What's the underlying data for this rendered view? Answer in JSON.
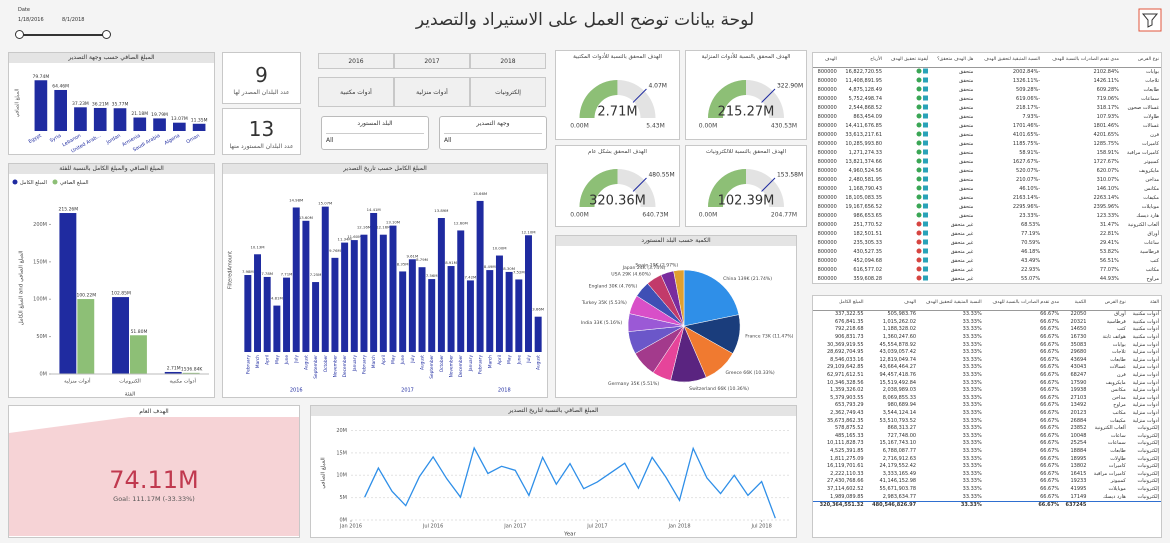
{
  "header": {
    "title": "لوحة بيانات توضح العمل على الاستيراد والتصدير",
    "date_slicer": {
      "label": "Date",
      "start": "1/18/2016",
      "end": "8/1/2018"
    }
  },
  "cards": [
    {
      "value": 9,
      "label": "عدد البلدان المصدر لها"
    },
    {
      "value": 13,
      "label": "عدد البلدان المستورد منها"
    }
  ],
  "slicers": {
    "years": [
      "2016",
      "2017",
      "2018"
    ],
    "categories": [
      "أدوات مكتبية",
      "أدوات منزلية",
      "إلكترونيات"
    ],
    "dropdowns": [
      {
        "label": "البلد المستورد",
        "value": "All"
      },
      {
        "label": "وجهة التصدير",
        "value": "All"
      }
    ]
  },
  "chart_data": [
    {
      "type": "bar",
      "title": "المبلغ الصافي حسب وجهة التصدير",
      "y_label": "المبلغ الصافي",
      "color": "#1f2ba0",
      "categories": [
        "Egypt",
        "Syria",
        "Lebanon",
        "United Arab...",
        "Jordan",
        "Armenia",
        "Saudi Arabia",
        "Algeria",
        "Oman"
      ],
      "values": [
        79.74,
        64.46,
        37.23,
        36.21,
        35.77,
        21.18,
        19.79,
        13.07,
        11.35
      ],
      "value_labels": [
        "79.74M",
        "64.46M",
        "37.23M",
        "36.21M",
        "35.77M",
        "21.18M",
        "19.79M",
        "13.07M",
        "11.35M"
      ],
      "ylim": [
        0,
        88
      ]
    },
    {
      "type": "grouped_bar",
      "title": "المبلغ الصافي والمبلغ الكامل بالنسبة للفئة",
      "x_label": "الفئة",
      "y_label": "المبلغ الكامل and المبلغ الصافي",
      "legend": "top-left",
      "categories": [
        "أدوات منزلية",
        "الكترونيات",
        "أدوات مكتبية"
      ],
      "series": [
        {
          "name": "المبلغ الكامل",
          "color": "#1f2ba0",
          "values": [
            215.26,
            102.85,
            2.71
          ],
          "value_labels": [
            "215.26M",
            "102.85M",
            "2.71M"
          ]
        },
        {
          "name": "المبلغ الصافي",
          "color": "#8dbf76",
          "values": [
            100.22,
            51.8,
            1.53684
          ],
          "value_labels": [
            "100.22M",
            "51.80M",
            "1536.84K"
          ]
        }
      ],
      "ylim": [
        0,
        230
      ],
      "yticks": [
        {
          "value": 0,
          "label": "0M"
        },
        {
          "value": 50,
          "label": "50M"
        },
        {
          "value": 100,
          "label": "100M"
        },
        {
          "value": 150,
          "label": "150M"
        },
        {
          "value": 200,
          "label": "200M"
        }
      ]
    },
    {
      "type": "grouped_column",
      "title": "المبلغ الكامل حسب تاريخ التصدير",
      "y_label": "FilteredAmount",
      "color": "#1f2ba0",
      "ylim": [
        0,
        17
      ],
      "groups": [
        {
          "label": "2016",
          "categories": [
            "February",
            "March",
            "April",
            "May",
            "June",
            "July",
            "August",
            "September",
            "October",
            "November",
            "December"
          ],
          "values": [
            7.98,
            10.13,
            7.78,
            4.81,
            7.71,
            14.98,
            13.6,
            7.25,
            15.07,
            9.76,
            11.34
          ],
          "value_labels": [
            "7.98M",
            "10.13M",
            "7.78M",
            "4.81M",
            "7.71M",
            "14.98M",
            "13.60M",
            "7.25M",
            "15.07M",
            "9.76M",
            "11.34M"
          ]
        },
        {
          "label": "2017",
          "categories": [
            "January",
            "February",
            "March",
            "April",
            "May",
            "June",
            "July",
            "August",
            "September",
            "October",
            "November",
            "December"
          ],
          "values": [
            11.6,
            12.16,
            14.41,
            12.16,
            13.1,
            8.35,
            9.61,
            8.79,
            7.56,
            13.89,
            8.91,
            12.6
          ],
          "value_labels": [
            "11.60M",
            "12.16M",
            "14.41M",
            "12.16M",
            "13.10M",
            "8.35M",
            "9.61M",
            "8.79M",
            "7.56M",
            "13.89M",
            "8.91M",
            "12.60M"
          ]
        },
        {
          "label": "2018",
          "categories": [
            "January",
            "February",
            "March",
            "April",
            "May",
            "June",
            "July",
            "August"
          ],
          "values": [
            7.42,
            15.66,
            8.49,
            10,
            8.3,
            7.52,
            12.1,
            3.66
          ],
          "value_labels": [
            "7.42M",
            "15.66M",
            "8.49M",
            "10.00M",
            "8.30M",
            "7.52M",
            "12.10M",
            "3.66M"
          ]
        }
      ]
    },
    {
      "type": "pie",
      "title": "الكمية حسب البلد المستورد",
      "categories": [
        "China",
        "France",
        "Greece",
        "Switzerland",
        "Germany",
        null,
        null,
        "India",
        "Turkey",
        "England",
        "USA",
        "Japan",
        "Spain"
      ],
      "values": [
        139,
        73,
        66,
        66,
        35,
        48,
        42,
        33,
        35,
        30,
        29,
        24,
        19
      ],
      "value_labels": [
        "139K (21.74%)",
        "73K (11.47%)",
        "66K (10.33%)",
        "66K (10.36%)",
        "35K (5.51%)",
        null,
        null,
        "33K (5.16%)",
        "35K (5.53%)",
        "30K (4.76%)",
        "29K (4.60%)",
        "24K (3.74%)",
        "19K (2.97%)"
      ],
      "colors": [
        "#2f8fe8",
        "#1a3d7c",
        "#f07a30",
        "#5a2480",
        "#e6449a",
        "#a33a8c",
        "#6b57c9",
        "#9b59d6",
        "#d84fc8",
        "#3f4fb5",
        "#c23a6a",
        "#7a2c9e",
        "#e0a030"
      ]
    },
    {
      "type": "line",
      "title": "المبلغ الصافي بالنسبة لتاريخ التصدير",
      "x_label": "Year",
      "y_label": "المبلغ الصافي",
      "color": "#2f8fe8",
      "x": [
        "2016-02",
        "2016-03",
        "2016-04",
        "2016-05",
        "2016-06",
        "2016-07",
        "2016-08",
        "2016-09",
        "2016-10",
        "2016-11",
        "2016-12",
        "2017-01",
        "2017-02",
        "2017-03",
        "2017-04",
        "2017-05",
        "2017-06",
        "2017-07",
        "2017-08",
        "2017-09",
        "2017-10",
        "2017-11",
        "2017-12",
        "2018-01",
        "2018-02",
        "2018-03",
        "2018-04",
        "2018-05",
        "2018-06",
        "2018-07",
        "2018-08"
      ],
      "values": [
        5.1,
        11.6,
        6.4,
        3.2,
        9.7,
        14.1,
        9.2,
        5.1,
        16.1,
        10.4,
        12.0,
        11.1,
        5.5,
        14.0,
        8.0,
        12.6,
        7.0,
        8.5,
        10.6,
        12.7,
        7.1,
        14.0,
        9.6,
        4.4,
        16.0,
        9.4,
        5.9,
        10.0,
        5.5,
        8.6,
        0.4
      ],
      "xlim": [
        "2016-01",
        "2018-09"
      ],
      "xticks": [
        {
          "value": "2016-01",
          "label": "Jan 2016"
        },
        {
          "value": "2016-07",
          "label": "Jul 2016"
        },
        {
          "value": "2017-01",
          "label": "Jan 2017"
        },
        {
          "value": "2017-07",
          "label": "Jul 2017"
        },
        {
          "value": "2018-01",
          "label": "Jan 2018"
        },
        {
          "value": "2018-07",
          "label": "Jul 2018"
        }
      ],
      "ylim": [
        0,
        21
      ],
      "yticks": [
        {
          "value": 0,
          "label": "0M"
        },
        {
          "value": 5,
          "label": "5M"
        },
        {
          "value": 10,
          "label": "10M"
        },
        {
          "value": 15,
          "label": "15M"
        },
        {
          "value": 20,
          "label": "20M"
        }
      ],
      "grid": true
    }
  ],
  "gauges": [
    {
      "title": "الهدف المحقق بالنسبة للأدوات المكتبية",
      "value": {
        "value": 2.71,
        "label": "2.71M"
      },
      "min": {
        "value": 0,
        "label": "0.00M"
      },
      "max": {
        "value": 5.43,
        "label": "5.43M"
      },
      "target": {
        "value": 4.07,
        "label": "4.07M"
      }
    },
    {
      "title": "الهدف المحقق بالنسبة للأدوات المنزلية",
      "value": {
        "value": 215.27,
        "label": "215.27M"
      },
      "min": {
        "value": 0,
        "label": "0.00M"
      },
      "max": {
        "value": 430.53,
        "label": "430.53M"
      },
      "target": {
        "value": 322.9,
        "label": "322.90M"
      }
    },
    {
      "title": "الهدف المحقق بشكل عام",
      "value": {
        "value": 320.36,
        "label": "320.36M"
      },
      "min": {
        "value": 0,
        "label": "0.00M"
      },
      "max": {
        "value": 640.73,
        "label": "640.73M"
      },
      "target": {
        "value": 480.55,
        "label": "480.55M"
      }
    },
    {
      "title": "الهدف المحقق بالنسبة للالكترونيات",
      "value": {
        "value": 102.39,
        "label": "102.39M"
      },
      "min": {
        "value": 0,
        "label": "0.00M"
      },
      "max": {
        "value": 204.77,
        "label": "204.77M"
      },
      "target": {
        "value": 153.58,
        "label": "153.58M"
      }
    }
  ],
  "gauge_colors": {
    "fill": "#8dbf76",
    "track": "#e3e3e3",
    "target": "#1f2ba0"
  },
  "kpi": {
    "title": "الهدف العام",
    "value": "74.11M",
    "goal": "Goal: 111.17M (-33.33%)"
  },
  "tables": [
    {
      "columns": [
        "نوع الفرض",
        "مدى تقدم الصادرات بالنسبة للهدف",
        "النسبة المتبقية لتحقيق الهدف",
        "هل الهدف متحقق؟",
        "أيقونة تحقيق الهدف",
        "الأرباح",
        "الهدف"
      ],
      "rows": [
        [
          "بوابات",
          "2102.84%",
          "-2002.84%",
          "متحقق",
          "16,822,720.55",
          "800000"
        ],
        [
          "ثلاجات",
          "1426.11%",
          "-1326.11%",
          "متحقق",
          "11,408,891.95",
          "800000"
        ],
        [
          "طابعات",
          "609.28%",
          "-509.28%",
          "متحقق",
          "4,875,128.49",
          "800000"
        ],
        [
          "سماعات",
          "719.06%",
          "-619.06%",
          "متحقق",
          "5,752,498.74",
          "800000"
        ],
        [
          "غسالات صحون",
          "318.17%",
          "-218.17%",
          "متحقق",
          "2,544,868.52",
          "800000"
        ],
        [
          "طاولات",
          "107.93%",
          "-7.93%",
          "متحقق",
          "863,454.09",
          "800000"
        ],
        [
          "غسالات",
          "1801.46%",
          "-1701.46%",
          "متحقق",
          "14,411,676.85",
          "800000"
        ],
        [
          "فرن",
          "4201.65%",
          "-4101.65%",
          "متحقق",
          "33,613,217.61",
          "800000"
        ],
        [
          "كاميرات",
          "1285.75%",
          "-1185.75%",
          "متحقق",
          "10,285,993.80",
          "800000"
        ],
        [
          "كاميرات مراقبة",
          "158.91%",
          "-58.91%",
          "متحقق",
          "1,271,274.33",
          "800000"
        ],
        [
          "كمبيوتر",
          "1727.67%",
          "-1627.67%",
          "متحقق",
          "13,821,374.66",
          "800000"
        ],
        [
          "مايكرويف",
          "620.07%",
          "-520.07%",
          "متحقق",
          "4,960,524.56",
          "800000"
        ],
        [
          "مداخن",
          "310.07%",
          "-210.07%",
          "متحقق",
          "2,480,581.95",
          "800000"
        ],
        [
          "مكانس",
          "146.10%",
          "-46.10%",
          "متحقق",
          "1,168,790.43",
          "800000"
        ],
        [
          "مكيفات",
          "2263.14%",
          "-2163.14%",
          "متحقق",
          "18,105,083.35",
          "800000"
        ],
        [
          "موبايلات",
          "2395.96%",
          "-2295.96%",
          "متحقق",
          "19,167,656.52",
          "800000"
        ],
        [
          "هارد ديسك",
          "123.33%",
          "-23.33%",
          "متحقق",
          "986,653.65",
          "800000"
        ],
        [
          "ألعاب الكترونية",
          "31.47%",
          "68.53%",
          "غير متحقق",
          "251,770.52",
          "800000"
        ],
        [
          "أوراق",
          "22.81%",
          "77.19%",
          "غير متحقق",
          "182,501.51",
          "800000"
        ],
        [
          "ساعات",
          "29.41%",
          "70.59%",
          "غير متحقق",
          "235,305.33",
          "800000"
        ],
        [
          "قرطاسية",
          "53.82%",
          "46.18%",
          "غير متحقق",
          "430,527.35",
          "800000"
        ],
        [
          "كتب",
          "56.51%",
          "43.49%",
          "غير متحقق",
          "452,094.68",
          "800000"
        ],
        [
          "مكاتب",
          "77.07%",
          "22.93%",
          "غير متحقق",
          "616,577.02",
          "800000"
        ],
        [
          "مراوح",
          "44.93%",
          "55.07%",
          "غير متحقق",
          "359,608.28",
          "800000"
        ],
        [
          "هواتف ثابتة",
          "58.96%",
          "41.04%",
          "غير متحقق",
          "471,712.73",
          "800000"
        ]
      ],
      "icon_colors": [
        "#3aa655",
        "#3aa655",
        "#3aa655",
        "#3aa655",
        "#3aa655",
        "#3aa655",
        "#3aa655",
        "#3aa655",
        "#3aa655",
        "#3aa655",
        "#3aa655",
        "#3aa655",
        "#3aa655",
        "#3aa655",
        "#3aa655",
        "#3aa655",
        "#3aa655",
        "#d64541",
        "#d64541",
        "#d64541",
        "#d64541",
        "#d64541",
        "#d64541",
        "#d64541",
        "#d64541"
      ]
    },
    {
      "columns": [
        "الفئة",
        "نوع الفرض",
        "الكمية",
        "مدى تقدم الصادرات بالنسبة للهدف",
        "النسبة المتبقية لتحقيق الهدف",
        "الهدف",
        "المبلغ الكامل"
      ],
      "rows": [
        [
          "أدوات مكتبية",
          "أوراق",
          "22050",
          "66.67%",
          "33.33%",
          "505,983.76",
          "337,322.55"
        ],
        [
          "أدوات مكتبية",
          "قرطاسية",
          "20321",
          "66.67%",
          "33.33%",
          "1,015,262.02",
          "676,841.35"
        ],
        [
          "أدوات مكتبية",
          "كتب",
          "14650",
          "66.67%",
          "33.33%",
          "1,188,328.02",
          "792,218.68"
        ],
        [
          "أدوات مكتبية",
          "هواتف ثابتة",
          "16730",
          "66.67%",
          "33.33%",
          "1,360,247.60",
          "906,831.73"
        ],
        [
          "أدوات منزلية",
          "بوابات",
          "35083",
          "66.67%",
          "33.33%",
          "45,554,878.92",
          "30,369,919.55"
        ],
        [
          "أدوات منزلية",
          "ثلاجات",
          "29680",
          "66.67%",
          "33.33%",
          "43,039,057.42",
          "28,692,704.95"
        ],
        [
          "أدوات منزلية",
          "طابعات",
          "43694",
          "66.67%",
          "33.33%",
          "12,819,049.74",
          "8,546,033.16"
        ],
        [
          "أدوات منزلية",
          "غسالات",
          "43043",
          "66.67%",
          "33.33%",
          "43,664,464.27",
          "29,109,642.85"
        ],
        [
          "أدوات منزلية",
          "فرن",
          "68247",
          "66.67%",
          "33.33%",
          "94,457,418.76",
          "62,971,612.51"
        ],
        [
          "أدوات منزلية",
          "مايكرويف",
          "17590",
          "66.67%",
          "33.33%",
          "15,519,492.84",
          "10,346,328.56"
        ],
        [
          "أدوات منزلية",
          "مكانس",
          "19938",
          "66.67%",
          "33.33%",
          "2,038,989.03",
          "1,359,326.02"
        ],
        [
          "أدوات منزلية",
          "مداخن",
          "27103",
          "66.67%",
          "33.33%",
          "8,069,855.33",
          "5,379,903.55"
        ],
        [
          "أدوات منزلية",
          "مراوح",
          "13492",
          "66.67%",
          "33.33%",
          "980,689.94",
          "653,793.29"
        ],
        [
          "أدوات منزلية",
          "مكاتب",
          "20123",
          "66.67%",
          "33.33%",
          "3,544,124.14",
          "2,362,749.43"
        ],
        [
          "أدوات منزلية",
          "مكيفات",
          "26884",
          "66.67%",
          "33.33%",
          "53,510,793.52",
          "35,673,862.35"
        ],
        [
          "إلكترونيات",
          "ألعاب الكترونية",
          "23852",
          "66.67%",
          "33.33%",
          "868,313.27",
          "578,875.52"
        ],
        [
          "إلكترونيات",
          "ساعات",
          "10048",
          "66.67%",
          "33.33%",
          "727,748.00",
          "485,165.33"
        ],
        [
          "إلكترونيات",
          "سماعات",
          "25254",
          "66.67%",
          "33.33%",
          "15,167,743.10",
          "10,111,828.73"
        ],
        [
          "إلكترونيات",
          "طابعات",
          "18884",
          "66.67%",
          "33.33%",
          "6,788,087.77",
          "4,525,391.85"
        ],
        [
          "إلكترونيات",
          "طاولات",
          "18995",
          "66.67%",
          "33.33%",
          "2,716,912.63",
          "1,811,275.09"
        ],
        [
          "إلكترونيات",
          "كاميرات",
          "13802",
          "66.67%",
          "33.33%",
          "24,179,552.42",
          "16,119,701.61"
        ],
        [
          "إلكترونيات",
          "كاميرات مراقبة",
          "16415",
          "66.67%",
          "33.33%",
          "3,333,165.49",
          "2,222,110.33"
        ],
        [
          "إلكترونيات",
          "كمبيوتر",
          "19233",
          "66.67%",
          "33.33%",
          "41,146,152.98",
          "27,430,768.66"
        ],
        [
          "إلكترونيات",
          "موبايلات",
          "41995",
          "66.67%",
          "33.33%",
          "55,671,903.78",
          "37,114,602.52"
        ],
        [
          "إلكترونيات",
          "هارد ديسك",
          "17149",
          "66.67%",
          "33.33%",
          "2,983,634.77",
          "1,989,089.85"
        ]
      ],
      "total": [
        "",
        "",
        "637245",
        "66.67%",
        "33.33%",
        "480,546,826.97",
        "320,364,551.32"
      ]
    }
  ]
}
